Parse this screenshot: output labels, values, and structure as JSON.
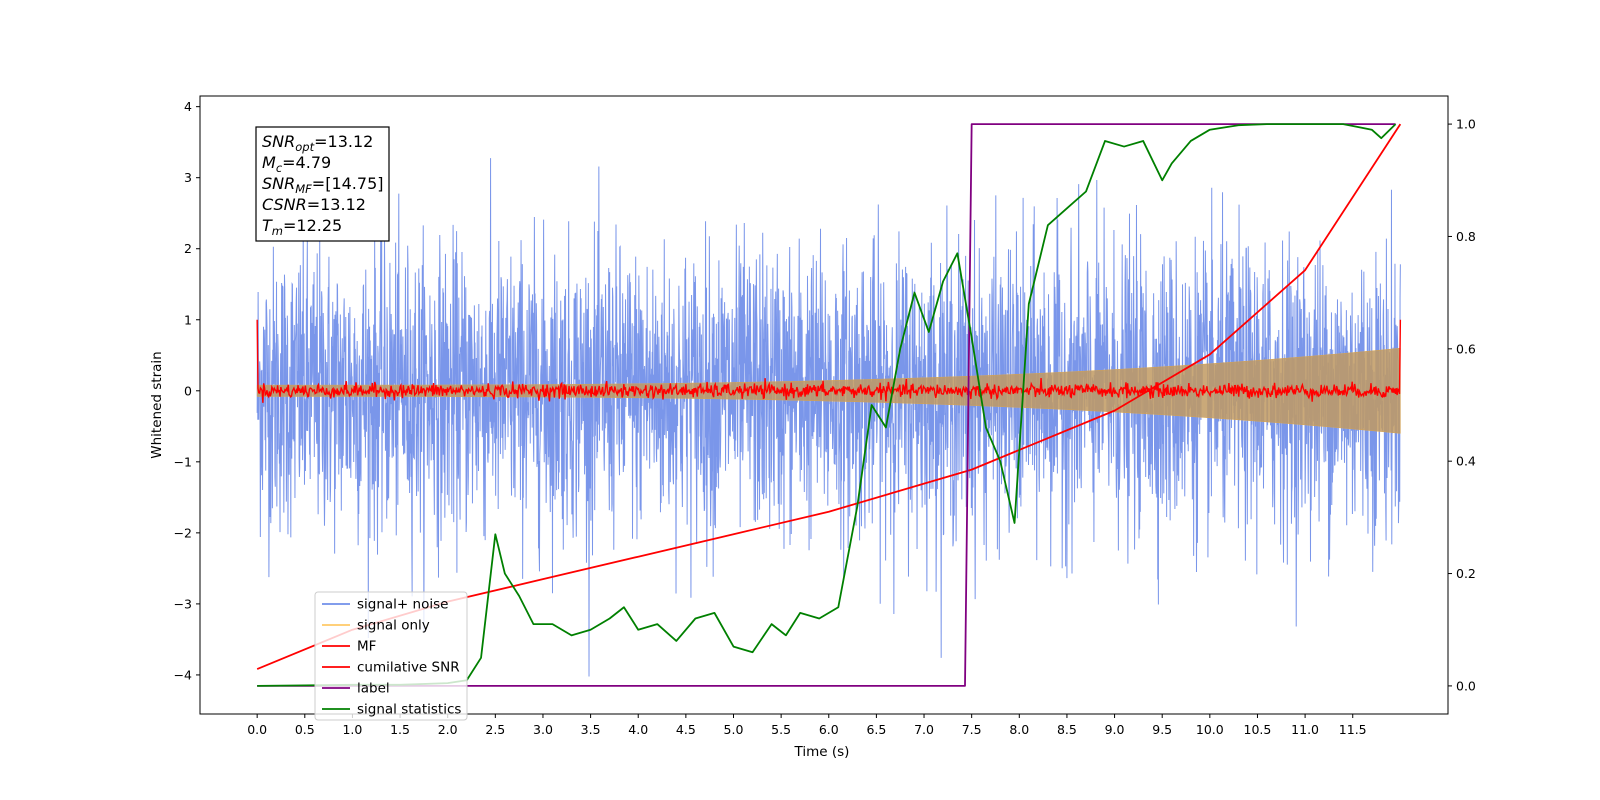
{
  "chart_data": {
    "type": "line",
    "xlabel": "Time (s)",
    "ylabel": "Whitened strain",
    "xlim": [
      -0.6,
      12.5
    ],
    "ylim": [
      -4.55,
      4.15
    ],
    "ylim_right": [
      -0.05,
      1.05
    ],
    "x_ticks": [
      "0.0",
      "0.5",
      "1.0",
      "1.5",
      "2.0",
      "2.5",
      "3.0",
      "3.5",
      "4.0",
      "4.5",
      "5.0",
      "5.5",
      "6.0",
      "6.5",
      "7.0",
      "7.5",
      "8.0",
      "8.5",
      "9.0",
      "9.5",
      "10.0",
      "10.5",
      "11.0",
      "11.5"
    ],
    "y_ticks": [
      "4",
      "3",
      "2",
      "1",
      "0",
      "−1",
      "−2",
      "−3",
      "−4"
    ],
    "y_ticks_right": [
      "1.0",
      "0.8",
      "0.6",
      "0.4",
      "0.2",
      "0.0"
    ],
    "legend_position": "lower-left",
    "grid": false,
    "colors": {
      "signal_noise": "#4169e1",
      "signal_only": "#ffa500",
      "mf": "#ff0000",
      "cumulative_snr": "#ff0000",
      "label": "#800080",
      "signal_statistics": "#008000"
    },
    "info_box": [
      {
        "var": "SNR",
        "sub": "opt",
        "val": "=13.12"
      },
      {
        "var": "M",
        "sub": "c",
        "val": "=4.79"
      },
      {
        "var": "SNR",
        "sub": "MF",
        "val": "=[14.75]"
      },
      {
        "var": "CSNR",
        "sub": "",
        "val": "=13.12"
      },
      {
        "var": "T",
        "sub": "m",
        "val": "=12.25"
      }
    ],
    "series": [
      {
        "name": "signal+ noise",
        "axis": "left",
        "style": "noise",
        "x_range": [
          0.0,
          12.0
        ],
        "amplitude_std": 1.0
      },
      {
        "name": "signal only",
        "axis": "left",
        "style": "chirp_envelope",
        "x_range": [
          0.0,
          12.0
        ],
        "envelope_start": 0.08,
        "envelope_end": 0.6
      },
      {
        "name": "MF",
        "axis": "left",
        "style": "matched_filter",
        "x_range": [
          0.0,
          12.0
        ],
        "edge_value": 1.0,
        "noise_std": 0.05
      },
      {
        "name": "cumilative SNR",
        "axis": "right",
        "x": [
          0.0,
          1.0,
          2.0,
          3.0,
          4.0,
          5.0,
          6.0,
          7.0,
          7.5,
          8.0,
          9.0,
          10.0,
          11.0,
          12.0
        ],
        "y": [
          0.03,
          0.1,
          0.15,
          0.19,
          0.23,
          0.27,
          0.31,
          0.36,
          0.385,
          0.42,
          0.49,
          0.59,
          0.74,
          1.0
        ]
      },
      {
        "name": "label",
        "axis": "right",
        "x": [
          0.0,
          7.43,
          7.5,
          11.95
        ],
        "y": [
          0.0,
          0.0,
          1.0,
          1.0
        ]
      },
      {
        "name": "signal statistics",
        "axis": "right",
        "x": [
          0.0,
          0.5,
          1.0,
          1.5,
          2.0,
          2.2,
          2.35,
          2.5,
          2.6,
          2.75,
          2.9,
          3.1,
          3.3,
          3.5,
          3.7,
          3.85,
          4.0,
          4.2,
          4.4,
          4.6,
          4.8,
          5.0,
          5.2,
          5.4,
          5.55,
          5.7,
          5.9,
          6.1,
          6.3,
          6.45,
          6.6,
          6.75,
          6.9,
          7.05,
          7.2,
          7.35,
          7.5,
          7.65,
          7.8,
          7.95,
          8.1,
          8.3,
          8.5,
          8.7,
          8.9,
          9.1,
          9.3,
          9.5,
          9.6,
          9.8,
          10.0,
          10.3,
          10.6,
          11.0,
          11.4,
          11.7,
          11.8,
          11.95
        ],
        "y": [
          0.0,
          0.001,
          0.002,
          0.002,
          0.005,
          0.01,
          0.05,
          0.27,
          0.2,
          0.16,
          0.11,
          0.11,
          0.09,
          0.1,
          0.12,
          0.14,
          0.1,
          0.11,
          0.08,
          0.12,
          0.13,
          0.07,
          0.06,
          0.11,
          0.09,
          0.13,
          0.12,
          0.14,
          0.32,
          0.5,
          0.46,
          0.6,
          0.7,
          0.63,
          0.72,
          0.77,
          0.62,
          0.46,
          0.4,
          0.29,
          0.68,
          0.82,
          0.85,
          0.88,
          0.97,
          0.96,
          0.97,
          0.9,
          0.93,
          0.97,
          0.99,
          0.998,
          1.0,
          1.0,
          1.0,
          0.99,
          0.975,
          1.0
        ]
      }
    ]
  }
}
